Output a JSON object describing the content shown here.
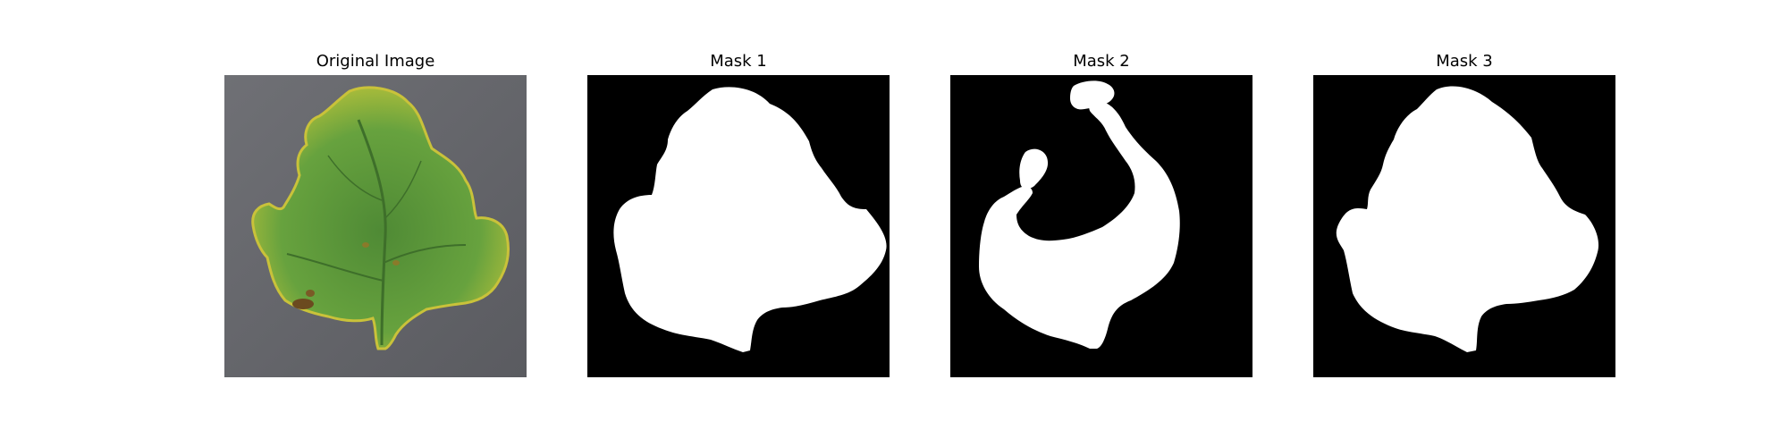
{
  "panels": [
    {
      "title": "Original Image"
    },
    {
      "title": "Mask 1"
    },
    {
      "title": "Mask 2"
    },
    {
      "title": "Mask 3"
    }
  ],
  "colors": {
    "background": "#ffffff",
    "mask_background": "#000000",
    "mask_foreground": "#ffffff",
    "photo_backdrop": "#6b6b70",
    "leaf_green": "#5f9a3c",
    "leaf_yellow": "#c9c23a",
    "lesion_brown": "#6b4a1f"
  }
}
